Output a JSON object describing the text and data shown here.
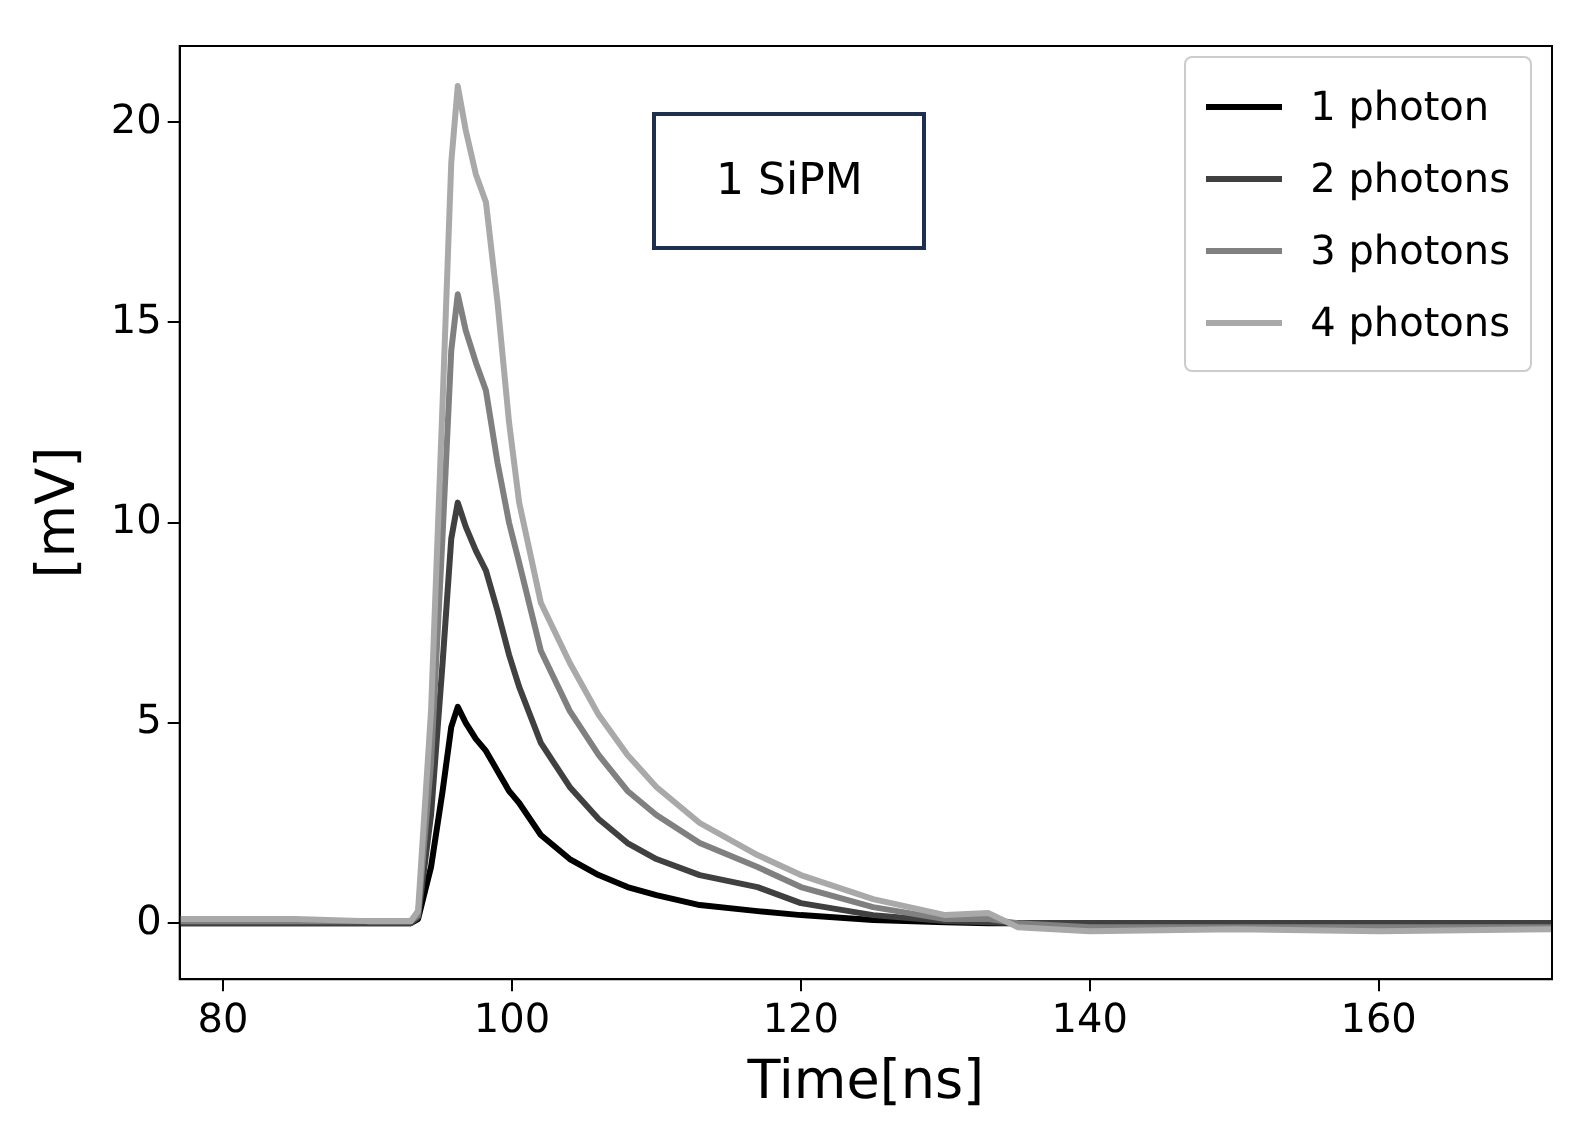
{
  "chart_data": {
    "type": "line",
    "xlabel": "Time[ns]",
    "ylabel": "[mV]",
    "annotations": [
      "1 SiPM"
    ],
    "x": [
      77,
      85,
      90,
      93,
      93.5,
      94.4,
      95.2,
      95.8,
      96.25,
      96.8,
      97.5,
      98.2,
      99,
      99.8,
      100.5,
      102,
      104,
      106,
      108,
      110,
      113,
      117,
      120,
      125,
      130,
      133,
      135,
      140,
      150,
      160,
      172
    ],
    "series": [
      {
        "name": "1 photon",
        "color": "#000000",
        "values": [
          0,
          0,
          0,
          0,
          0.1,
          1.4,
          3.3,
          4.9,
          5.4,
          5,
          4.6,
          4.3,
          3.8,
          3.3,
          3,
          2.2,
          1.6,
          1.2,
          0.9,
          0.7,
          0.45,
          0.3,
          0.2,
          0.08,
          0.02,
          0,
          0,
          0,
          0,
          0,
          0
        ]
      },
      {
        "name": "2 photons",
        "color": "#404040",
        "values": [
          0,
          0,
          0,
          0,
          0.15,
          2.7,
          6.5,
          9.6,
          10.5,
          9.9,
          9.3,
          8.8,
          7.8,
          6.7,
          5.9,
          4.5,
          3.4,
          2.6,
          2,
          1.6,
          1.2,
          0.9,
          0.5,
          0.2,
          0.05,
          0.02,
          0,
          0,
          0,
          0,
          0
        ]
      },
      {
        "name": "3 photons",
        "color": "#808080",
        "values": [
          0.05,
          0.05,
          0.05,
          0.05,
          0.2,
          4,
          9.7,
          14.3,
          15.7,
          14.8,
          14,
          13.3,
          11.5,
          10,
          9,
          6.8,
          5.3,
          4.2,
          3.3,
          2.7,
          2,
          1.4,
          0.9,
          0.4,
          0.1,
          0.1,
          0,
          -0.1,
          -0.1,
          -0.1,
          -0.1
        ]
      },
      {
        "name": "4 photons",
        "color": "#a9a9a9",
        "values": [
          0.1,
          0.1,
          0.05,
          0.05,
          0.3,
          5.3,
          13,
          19,
          20.9,
          19.8,
          18.7,
          18,
          15.5,
          12.5,
          10.5,
          8,
          6.5,
          5.2,
          4.2,
          3.4,
          2.5,
          1.7,
          1.2,
          0.6,
          0.2,
          0.25,
          -0.1,
          -0.2,
          -0.15,
          -0.2,
          -0.15
        ]
      }
    ],
    "xlim": [
      77,
      172
    ],
    "ylim": [
      -1.4,
      21.9
    ],
    "xticks": [
      80,
      100,
      120,
      140,
      160
    ],
    "yticks": [
      0,
      5,
      10,
      15,
      20
    ],
    "grid": false,
    "legend": "top right",
    "marker": "none",
    "line_style": "solid"
  }
}
